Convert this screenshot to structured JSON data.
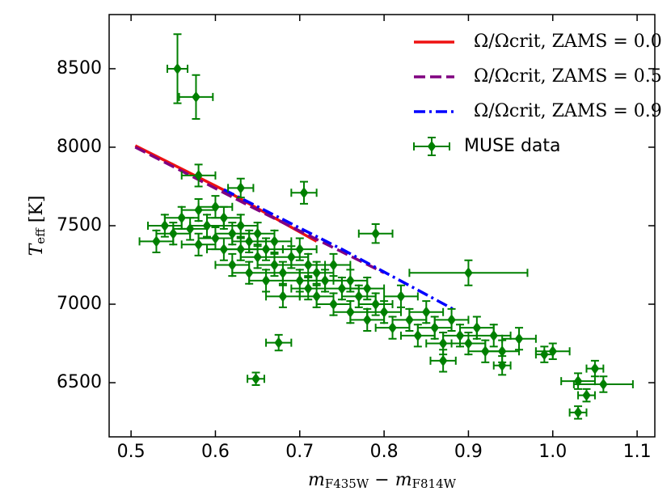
{
  "chart_data": {
    "type": "scatter",
    "xlabel": [
      {
        "text": "m",
        "italic": true
      },
      {
        "text": "F435W",
        "sub": true
      },
      {
        "text": " − "
      },
      {
        "text": "m",
        "italic": true
      },
      {
        "text": "F814W",
        "sub": true
      }
    ],
    "ylabel": [
      {
        "text": "T",
        "italic": true
      },
      {
        "text": "eff",
        "sub": true
      },
      {
        "text": " [K]"
      }
    ],
    "xlim": [
      0.474,
      1.121
    ],
    "ylim": [
      6155,
      8845
    ],
    "xticks": [
      0.5,
      0.6,
      0.7,
      0.8,
      0.9,
      {
        "value": 1.0,
        "label": "1.0"
      },
      1.1
    ],
    "yticks": [
      6500,
      7000,
      7500,
      8000,
      8500
    ],
    "legend": "upper right",
    "series": [
      {
        "name": "Ω/Ωcrit, ZAMS = 0.0",
        "color": "#ee1111",
        "style": "solid",
        "x": [
          0.505,
          0.62,
          0.72
        ],
        "values": [
          8010,
          7700,
          7400
        ]
      },
      {
        "name": "Ω/Ωcrit, ZAMS = 0.5",
        "color": "#800080",
        "style": "dashed",
        "x": [
          0.505,
          0.65,
          0.8
        ],
        "values": [
          8000,
          7600,
          7200
        ]
      },
      {
        "name": "Ω/Ωcrit, ZAMS = 0.9",
        "color": "#0000ff",
        "style": "dashdot",
        "x": [
          0.61,
          0.75,
          0.885
        ],
        "values": [
          7730,
          7350,
          6960
        ]
      },
      {
        "name": "MUSE data",
        "color": "#008000",
        "style": "errorbar",
        "x": [
          0.53,
          0.54,
          0.55,
          0.56,
          0.57,
          0.58,
          0.58,
          0.59,
          0.6,
          0.6,
          0.61,
          0.61,
          0.62,
          0.62,
          0.63,
          0.63,
          0.64,
          0.64,
          0.65,
          0.65,
          0.66,
          0.66,
          0.67,
          0.67,
          0.68,
          0.68,
          0.69,
          0.7,
          0.7,
          0.71,
          0.71,
          0.72,
          0.72,
          0.73,
          0.74,
          0.74,
          0.75,
          0.76,
          0.76,
          0.77,
          0.78,
          0.78,
          0.79,
          0.8,
          0.81,
          0.82,
          0.83,
          0.84,
          0.85,
          0.86,
          0.87,
          0.88,
          0.89,
          0.9,
          0.91,
          0.92,
          0.93,
          0.94,
          0.96,
          0.555,
          0.577,
          0.58,
          0.705,
          0.63,
          0.648,
          0.675,
          0.79,
          0.9,
          0.87,
          0.94,
          1.0,
          1.03,
          1.04,
          1.05,
          1.06,
          1.03,
          0.99
        ],
        "values": [
          7400,
          7500,
          7450,
          7550,
          7480,
          7600,
          7380,
          7500,
          7420,
          7620,
          7350,
          7550,
          7450,
          7250,
          7500,
          7350,
          7400,
          7200,
          7450,
          7300,
          7350,
          7150,
          7250,
          7400,
          7200,
          7050,
          7300,
          7150,
          7350,
          7100,
          7250,
          7050,
          7200,
          7150,
          7000,
          7250,
          7100,
          6950,
          7150,
          7050,
          6900,
          7100,
          7000,
          6950,
          6850,
          7050,
          6900,
          6800,
          6950,
          6850,
          6750,
          6900,
          6800,
          6750,
          6850,
          6700,
          6800,
          6700,
          6780,
          8500,
          8320,
          7820,
          7710,
          7740,
          6525,
          6755,
          7450,
          7200,
          6640,
          6610,
          6700,
          6510,
          6420,
          6590,
          6490,
          6310,
          6680
        ],
        "xerr": [
          0.02,
          0.02,
          0.02,
          0.02,
          0.02,
          0.02,
          0.02,
          0.02,
          0.02,
          0.02,
          0.02,
          0.02,
          0.02,
          0.02,
          0.02,
          0.02,
          0.02,
          0.02,
          0.02,
          0.02,
          0.02,
          0.02,
          0.02,
          0.02,
          0.02,
          0.02,
          0.02,
          0.02,
          0.02,
          0.02,
          0.02,
          0.02,
          0.02,
          0.02,
          0.02,
          0.02,
          0.02,
          0.02,
          0.02,
          0.02,
          0.02,
          0.02,
          0.02,
          0.02,
          0.02,
          0.02,
          0.02,
          0.02,
          0.02,
          0.02,
          0.02,
          0.02,
          0.02,
          0.02,
          0.02,
          0.02,
          0.02,
          0.02,
          0.02,
          0.012,
          0.02,
          0.02,
          0.015,
          0.015,
          0.01,
          0.015,
          0.02,
          0.07,
          0.015,
          0.01,
          0.02,
          0.02,
          0.01,
          0.01,
          0.035,
          0.01,
          0.01
        ],
        "yerr": [
          70,
          70,
          70,
          70,
          70,
          70,
          70,
          70,
          70,
          70,
          70,
          70,
          70,
          70,
          70,
          70,
          70,
          70,
          70,
          70,
          70,
          70,
          70,
          70,
          70,
          70,
          70,
          70,
          70,
          70,
          70,
          70,
          70,
          70,
          70,
          70,
          70,
          70,
          70,
          70,
          70,
          70,
          70,
          70,
          70,
          70,
          70,
          70,
          70,
          70,
          70,
          70,
          70,
          70,
          70,
          70,
          70,
          70,
          70,
          220,
          140,
          70,
          70,
          60,
          40,
          50,
          60,
          80,
          70,
          60,
          50,
          50,
          40,
          50,
          50,
          40,
          50
        ]
      }
    ]
  }
}
